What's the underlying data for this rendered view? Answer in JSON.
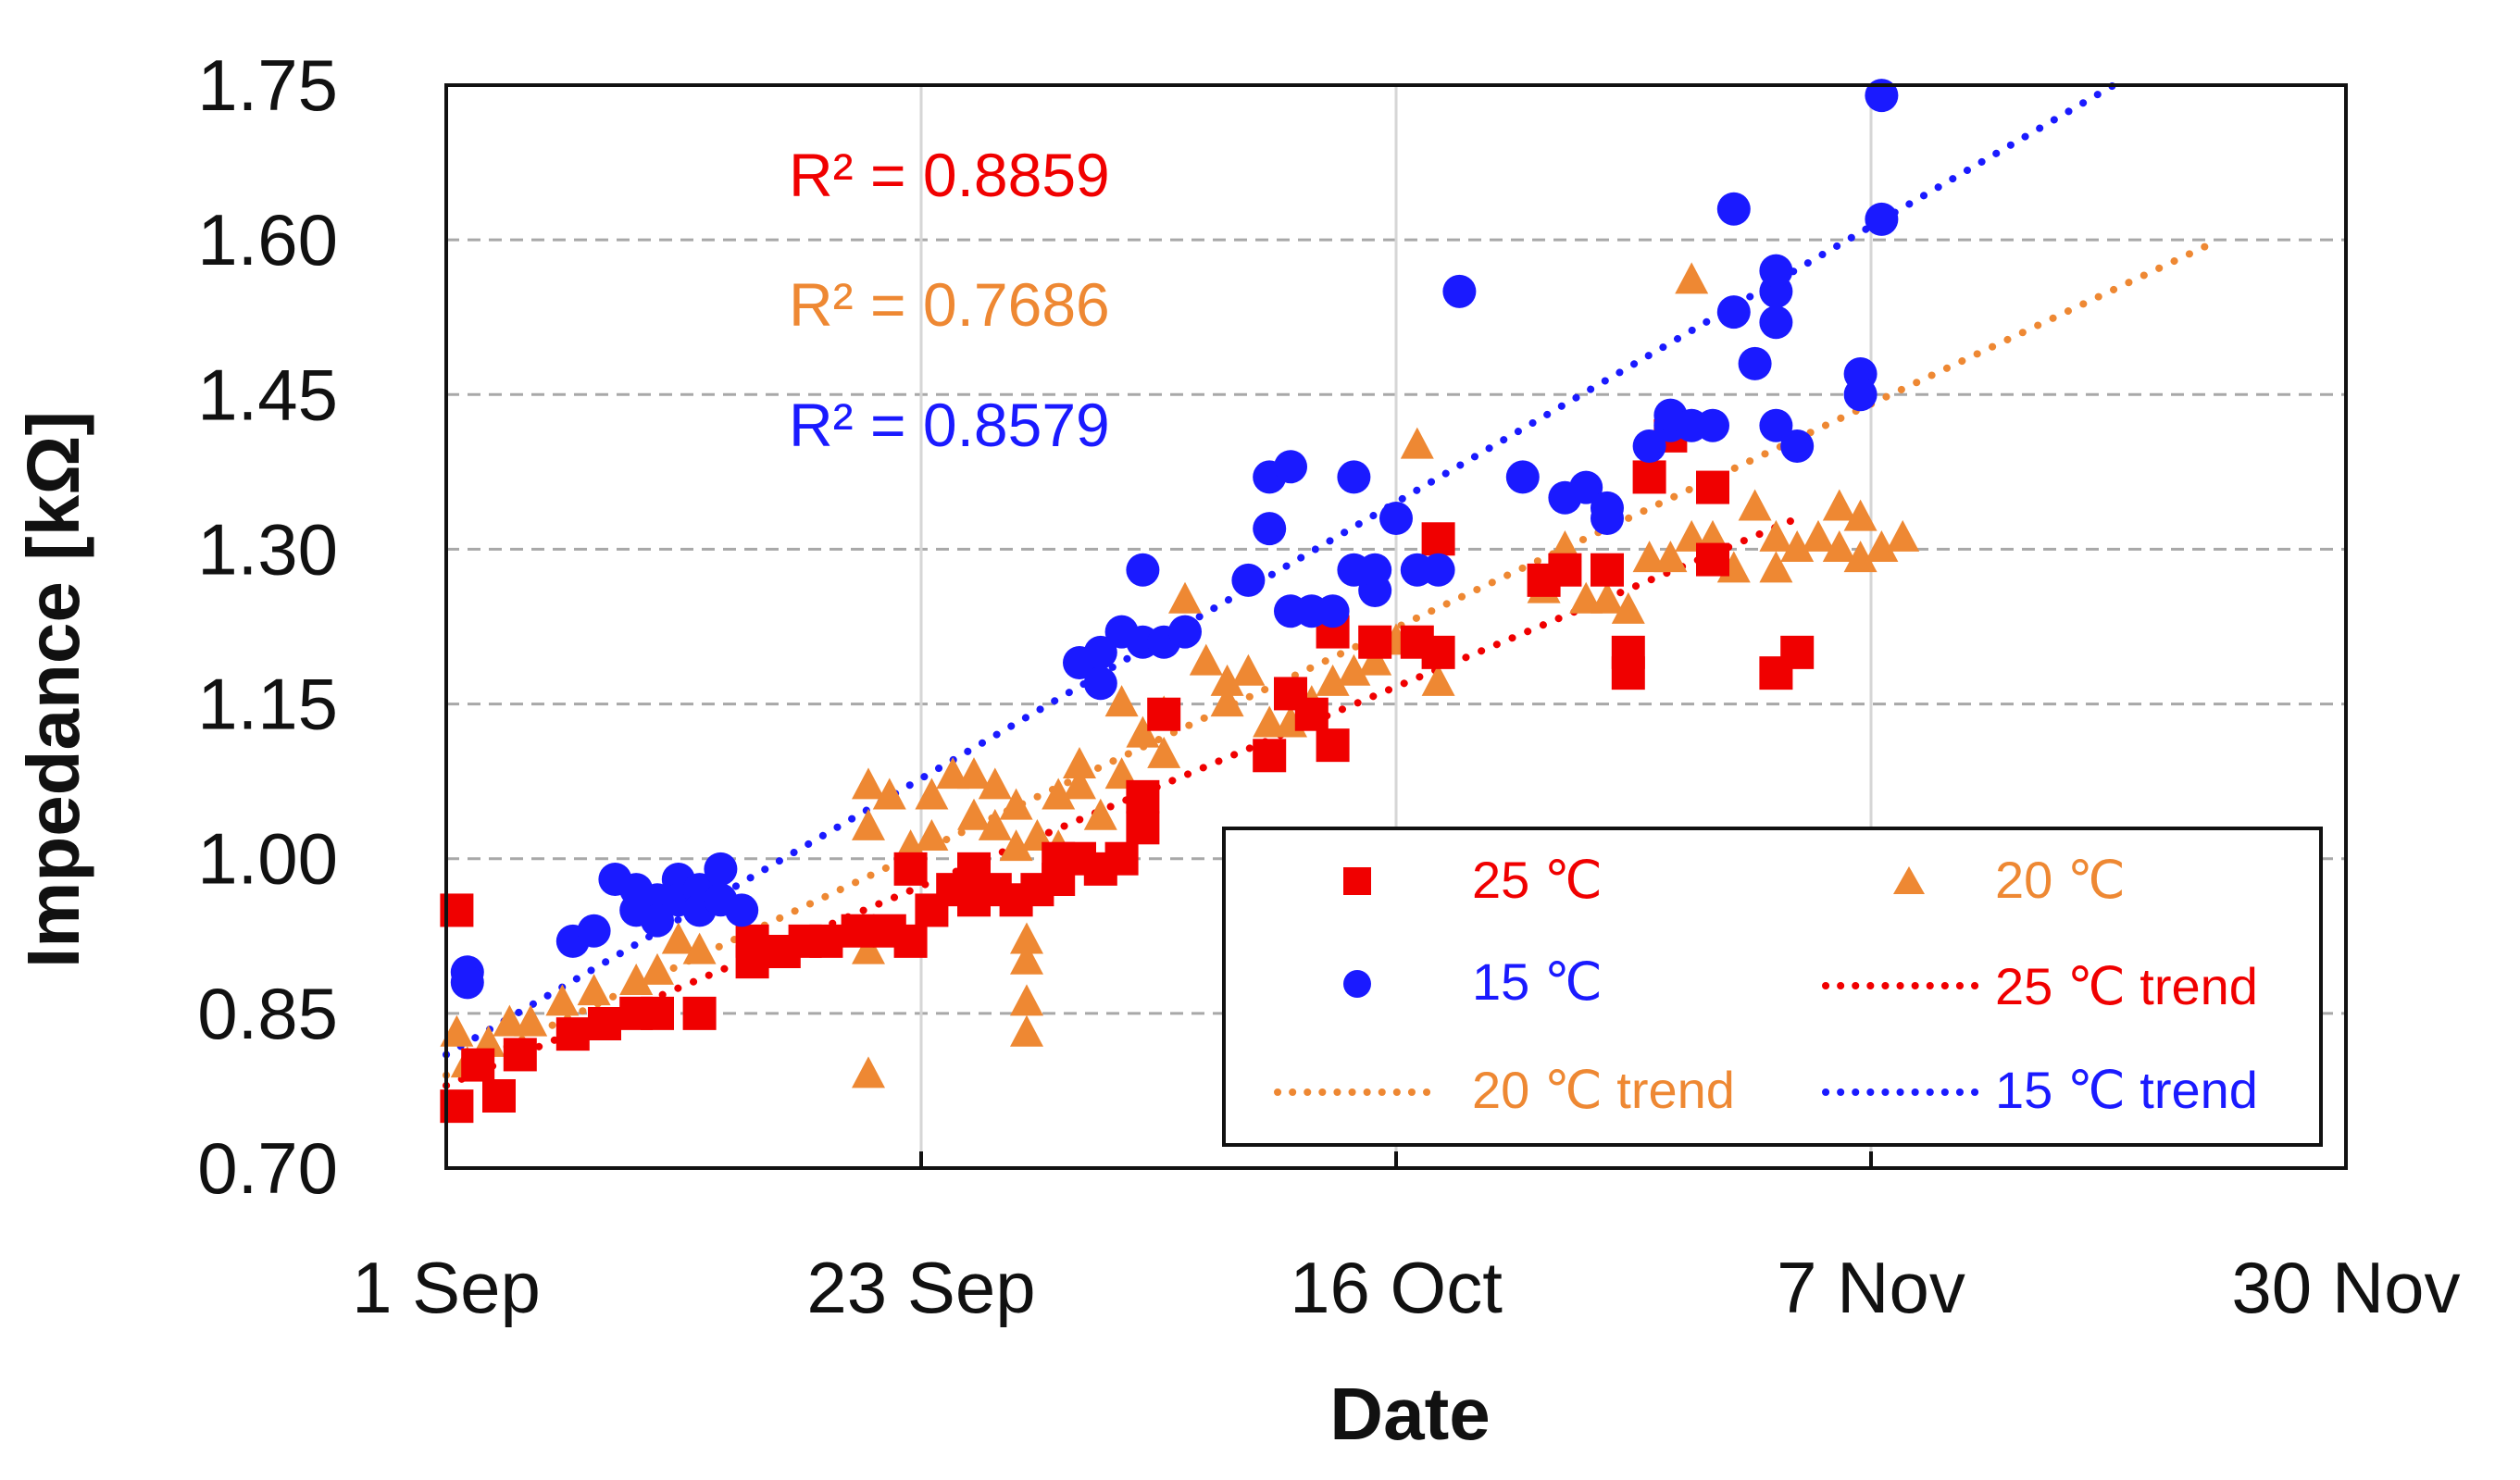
{
  "chart_data": {
    "type": "scatter",
    "xlabel": "Date",
    "ylabel": "Impedance  [kΩ]",
    "xlim": [
      0,
      90
    ],
    "ylim": [
      0.7,
      1.75
    ],
    "x_ticks": [
      {
        "value": 0,
        "label": "1 Sep"
      },
      {
        "value": 22.5,
        "label": "23 Sep"
      },
      {
        "value": 45,
        "label": "16 Oct"
      },
      {
        "value": 67.5,
        "label": "7 Nov"
      },
      {
        "value": 90,
        "label": "30 Nov"
      }
    ],
    "y_ticks": [
      {
        "value": 0.7,
        "label": "0.70"
      },
      {
        "value": 0.85,
        "label": "0.85"
      },
      {
        "value": 1.0,
        "label": "1.00"
      },
      {
        "value": 1.15,
        "label": "1.15"
      },
      {
        "value": 1.3,
        "label": "1.30"
      },
      {
        "value": 1.45,
        "label": "1.45"
      },
      {
        "value": 1.6,
        "label": "1.60"
      },
      {
        "value": 1.75,
        "label": "1.75"
      }
    ],
    "grid": "dashed horizontal, solid vertical",
    "legend_position": "bottom-right",
    "annotations": [
      {
        "text": "R² = 0.8859",
        "color": "#f00000"
      },
      {
        "text": "R² = 0.7686",
        "color": "#ee8833"
      },
      {
        "text": "R² = 0.8579",
        "color": "#1a1aff"
      }
    ],
    "series": [
      {
        "name": "25 ℃",
        "marker": "square",
        "color": "#f00000",
        "points": [
          [
            0.5,
            0.95
          ],
          [
            0.5,
            0.76
          ],
          [
            1.5,
            0.8
          ],
          [
            2.5,
            0.77
          ],
          [
            3.5,
            0.81
          ],
          [
            6,
            0.83
          ],
          [
            7.5,
            0.84
          ],
          [
            9,
            0.85
          ],
          [
            10,
            0.85
          ],
          [
            12,
            0.85
          ],
          [
            14.5,
            0.9
          ],
          [
            14.5,
            0.92
          ],
          [
            16,
            0.91
          ],
          [
            17,
            0.92
          ],
          [
            18,
            0.92
          ],
          [
            19.5,
            0.93
          ],
          [
            21,
            0.93
          ],
          [
            22,
            0.99
          ],
          [
            22,
            0.92
          ],
          [
            23,
            0.95
          ],
          [
            24,
            0.97
          ],
          [
            25,
            0.99
          ],
          [
            25,
            0.96
          ],
          [
            26,
            0.97
          ],
          [
            27,
            0.96
          ],
          [
            28,
            0.97
          ],
          [
            29,
            1.0
          ],
          [
            29,
            0.98
          ],
          [
            30,
            1.0
          ],
          [
            31,
            0.99
          ],
          [
            32,
            1.0
          ],
          [
            33,
            1.06
          ],
          [
            33,
            1.03
          ],
          [
            34,
            1.14
          ],
          [
            39,
            1.1
          ],
          [
            40,
            1.16
          ],
          [
            41,
            1.14
          ],
          [
            42,
            1.22
          ],
          [
            42,
            1.11
          ],
          [
            44,
            1.21
          ],
          [
            46,
            1.21
          ],
          [
            47,
            1.31
          ],
          [
            47,
            1.2
          ],
          [
            52,
            1.27
          ],
          [
            53,
            1.28
          ],
          [
            55,
            1.28
          ],
          [
            56,
            1.2
          ],
          [
            56,
            1.18
          ],
          [
            57,
            1.37
          ],
          [
            58,
            1.41
          ],
          [
            60,
            1.36
          ],
          [
            60,
            1.29
          ],
          [
            63,
            1.18
          ],
          [
            64,
            1.2
          ]
        ]
      },
      {
        "name": "20 ℃",
        "marker": "triangle",
        "color": "#ee8833",
        "points": [
          [
            0.5,
            0.83
          ],
          [
            1,
            0.8
          ],
          [
            2,
            0.82
          ],
          [
            3,
            0.84
          ],
          [
            4,
            0.84
          ],
          [
            5.5,
            0.86
          ],
          [
            7,
            0.87
          ],
          [
            9,
            0.88
          ],
          [
            10,
            0.89
          ],
          [
            11,
            0.92
          ],
          [
            12,
            0.91
          ],
          [
            20,
            0.79
          ],
          [
            20,
            0.91
          ],
          [
            20,
            1.07
          ],
          [
            20,
            1.03
          ],
          [
            21,
            1.06
          ],
          [
            22,
            1.01
          ],
          [
            23,
            1.06
          ],
          [
            23,
            1.02
          ],
          [
            24,
            1.08
          ],
          [
            25,
            1.08
          ],
          [
            25,
            1.04
          ],
          [
            26,
            1.07
          ],
          [
            26,
            1.03
          ],
          [
            27,
            1.05
          ],
          [
            27,
            1.01
          ],
          [
            27.5,
            0.92
          ],
          [
            27.5,
            0.9
          ],
          [
            27.5,
            0.86
          ],
          [
            27.5,
            0.83
          ],
          [
            28,
            1.02
          ],
          [
            29,
            1.06
          ],
          [
            29,
            1.01
          ],
          [
            30,
            1.09
          ],
          [
            30,
            1.07
          ],
          [
            31,
            1.04
          ],
          [
            32,
            1.08
          ],
          [
            32,
            1.15
          ],
          [
            33,
            1.12
          ],
          [
            34,
            1.14
          ],
          [
            34,
            1.1
          ],
          [
            35,
            1.25
          ],
          [
            36,
            1.19
          ],
          [
            37,
            1.17
          ],
          [
            37,
            1.15
          ],
          [
            38,
            1.18
          ],
          [
            39,
            1.13
          ],
          [
            40,
            1.13
          ],
          [
            41,
            1.15
          ],
          [
            42,
            1.17
          ],
          [
            43,
            1.18
          ],
          [
            44,
            1.19
          ],
          [
            45,
            1.21
          ],
          [
            46,
            1.4
          ],
          [
            47,
            1.17
          ],
          [
            52,
            1.26
          ],
          [
            53,
            1.3
          ],
          [
            54,
            1.25
          ],
          [
            55,
            1.25
          ],
          [
            56,
            1.24
          ],
          [
            57,
            1.29
          ],
          [
            58,
            1.29
          ],
          [
            59,
            1.56
          ],
          [
            59,
            1.31
          ],
          [
            60,
            1.31
          ],
          [
            60,
            1.3
          ],
          [
            61,
            1.28
          ],
          [
            62,
            1.34
          ],
          [
            63,
            1.31
          ],
          [
            63,
            1.28
          ],
          [
            64,
            1.3
          ],
          [
            65,
            1.31
          ],
          [
            66,
            1.3
          ],
          [
            66,
            1.34
          ],
          [
            67,
            1.33
          ],
          [
            67,
            1.29
          ],
          [
            68,
            1.3
          ],
          [
            69,
            1.31
          ]
        ]
      },
      {
        "name": "15 ℃",
        "marker": "circle",
        "color": "#1a1aff",
        "points": [
          [
            1,
            0.89
          ],
          [
            1,
            0.88
          ],
          [
            6,
            0.92
          ],
          [
            7,
            0.93
          ],
          [
            8,
            0.98
          ],
          [
            9,
            0.97
          ],
          [
            9,
            0.95
          ],
          [
            10,
            0.96
          ],
          [
            10,
            0.94
          ],
          [
            11,
            0.98
          ],
          [
            11,
            0.96
          ],
          [
            12,
            0.97
          ],
          [
            12,
            0.95
          ],
          [
            13,
            0.99
          ],
          [
            13,
            0.96
          ],
          [
            14,
            0.95
          ],
          [
            30,
            1.19
          ],
          [
            31,
            1.17
          ],
          [
            31,
            1.2
          ],
          [
            32,
            1.22
          ],
          [
            33,
            1.21
          ],
          [
            33,
            1.28
          ],
          [
            34,
            1.21
          ],
          [
            35,
            1.22
          ],
          [
            38,
            1.27
          ],
          [
            39,
            1.32
          ],
          [
            39,
            1.37
          ],
          [
            40,
            1.38
          ],
          [
            40,
            1.24
          ],
          [
            41,
            1.24
          ],
          [
            42,
            1.24
          ],
          [
            43,
            1.37
          ],
          [
            43,
            1.28
          ],
          [
            44,
            1.26
          ],
          [
            44,
            1.28
          ],
          [
            45,
            1.33
          ],
          [
            46,
            1.28
          ],
          [
            47,
            1.28
          ],
          [
            48,
            1.55
          ],
          [
            51,
            1.37
          ],
          [
            53,
            1.35
          ],
          [
            54,
            1.36
          ],
          [
            55,
            1.34
          ],
          [
            55,
            1.33
          ],
          [
            57,
            1.4
          ],
          [
            58,
            1.42
          ],
          [
            58,
            1.43
          ],
          [
            59,
            1.42
          ],
          [
            60,
            1.42
          ],
          [
            61,
            1.63
          ],
          [
            61,
            1.53
          ],
          [
            62,
            1.48
          ],
          [
            63,
            1.55
          ],
          [
            63,
            1.57
          ],
          [
            63,
            1.52
          ],
          [
            63,
            1.42
          ],
          [
            64,
            1.4
          ],
          [
            67,
            1.47
          ],
          [
            67,
            1.45
          ],
          [
            68,
            1.74
          ],
          [
            68,
            1.62
          ]
        ]
      }
    ],
    "trends": [
      {
        "name": "25 ℃ trend",
        "color": "#f00000",
        "from": [
          0,
          0.78
        ],
        "to": [
          64,
          1.33
        ]
      },
      {
        "name": "20 ℃ trend",
        "color": "#ee8833",
        "from": [
          0,
          0.79
        ],
        "to": [
          84,
          1.6
        ]
      },
      {
        "name": "15 ℃ trend",
        "color": "#1a1aff",
        "from": [
          0,
          0.81
        ],
        "to": [
          79,
          1.75
        ]
      }
    ],
    "legend": [
      {
        "label": "25 ℃",
        "kind": "square",
        "color": "#f00000"
      },
      {
        "label": "20 ℃",
        "kind": "triangle",
        "color": "#ee8833"
      },
      {
        "label": "15 ℃",
        "kind": "circle",
        "color": "#1a1aff"
      },
      {
        "label": "25 ℃ trend",
        "kind": "line",
        "color": "#f00000"
      },
      {
        "label": "20 ℃ trend",
        "kind": "line",
        "color": "#ee8833"
      },
      {
        "label": "15 ℃ trend",
        "kind": "line",
        "color": "#1a1aff"
      }
    ]
  }
}
